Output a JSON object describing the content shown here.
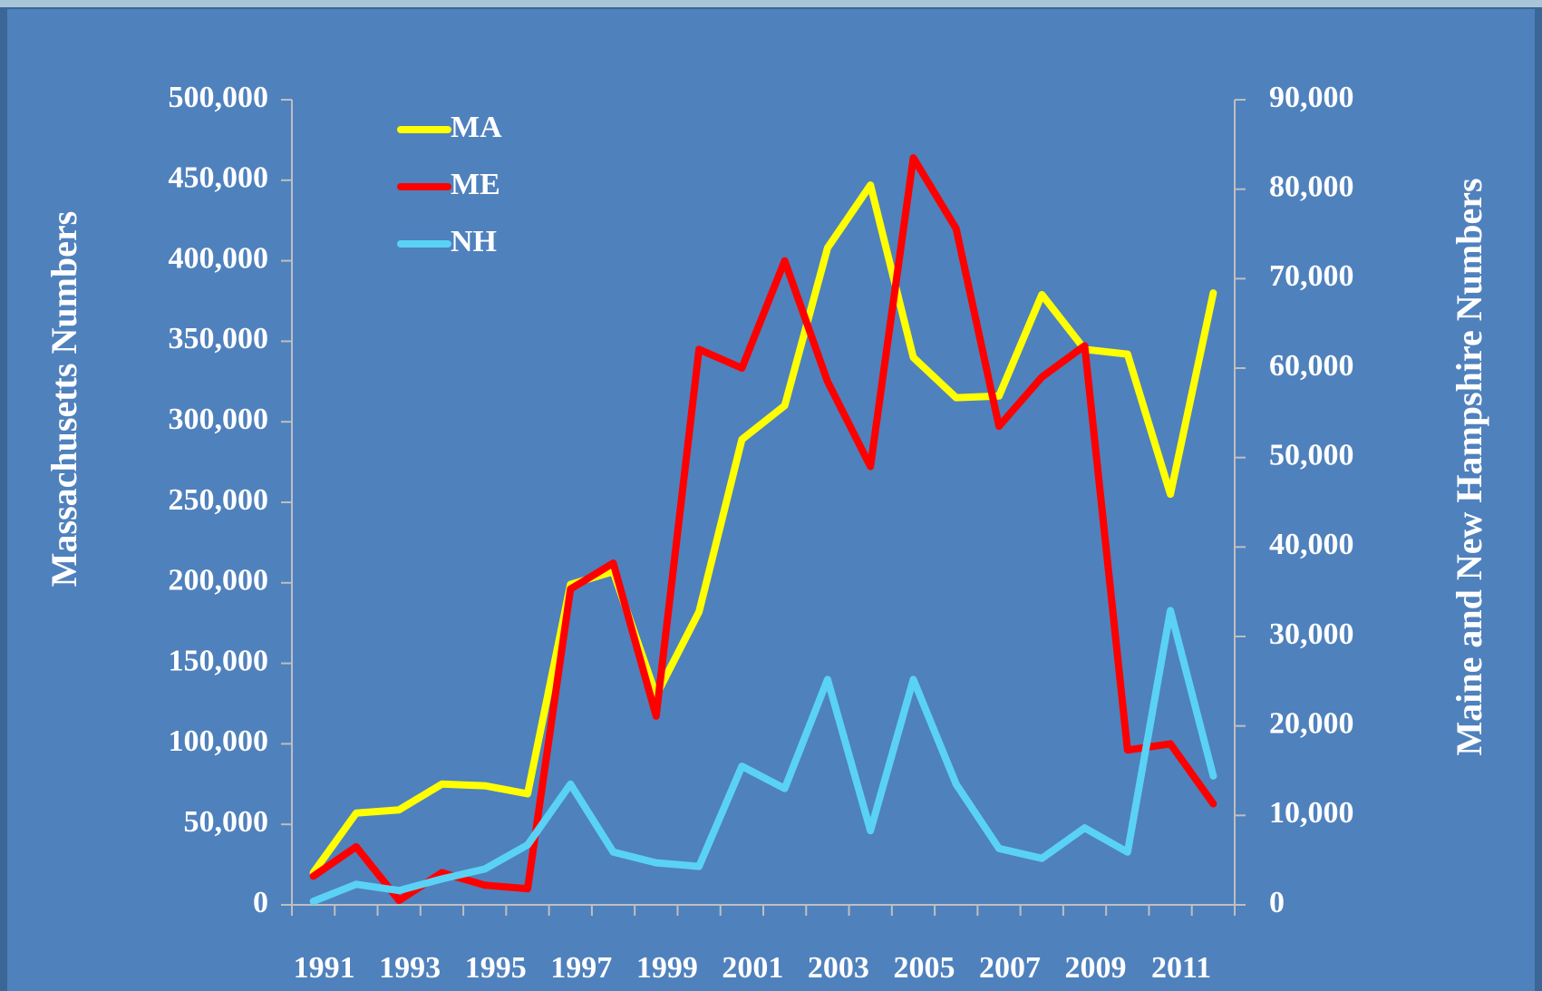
{
  "chart_data": {
    "type": "line",
    "categories": [
      "1991",
      null,
      "1993",
      null,
      "1995",
      null,
      "1997",
      null,
      "1999",
      null,
      "2001",
      null,
      "2003",
      null,
      "2005",
      null,
      "2007",
      null,
      "2009",
      null,
      "2011",
      null
    ],
    "series": [
      {
        "name": "MA",
        "color": "#ffff00",
        "axis": "y",
        "values": [
          20000,
          57000,
          59000,
          75000,
          74000,
          69000,
          199000,
          207000,
          130000,
          182000,
          289000,
          310000,
          408000,
          447000,
          340000,
          315000,
          316000,
          379000,
          345000,
          342000,
          255000,
          380000
        ]
      },
      {
        "name": "ME",
        "color": "#ff0000",
        "axis": "y2",
        "values": [
          3200,
          6500,
          500,
          3600,
          2200,
          1800,
          35300,
          38200,
          21100,
          62100,
          60000,
          72000,
          58500,
          49000,
          83500,
          75600,
          53500,
          59000,
          62500,
          17300,
          18000,
          11300
        ]
      },
      {
        "name": "NH",
        "color": "#5ad2f5",
        "axis": "y2",
        "values": [
          400,
          2300,
          1600,
          2900,
          4000,
          6700,
          13500,
          5900,
          4700,
          4300,
          15500,
          13000,
          25200,
          8300,
          25200,
          13500,
          6300,
          5200,
          8600,
          5900,
          32900,
          14400
        ]
      }
    ],
    "y_label": "Massachusetts Numbers",
    "y2_label": "Maine and New Hampshire Numbers",
    "ylim": [
      0,
      500000
    ],
    "yticks": [
      0,
      {
        "value": 50000,
        "label": "50,000"
      },
      {
        "value": 100000,
        "label": "100,000"
      },
      {
        "value": 150000,
        "label": "150,000"
      },
      {
        "value": 200000,
        "label": "200,000"
      },
      {
        "value": 250000,
        "label": "250,000"
      },
      {
        "value": 300000,
        "label": "300,000"
      },
      {
        "value": 350000,
        "label": "350,000"
      },
      {
        "value": 400000,
        "label": "400,000"
      },
      {
        "value": 450000,
        "label": "450,000"
      },
      {
        "value": 500000,
        "label": "500,000"
      }
    ],
    "y2lim": [
      0,
      90000
    ],
    "y2ticks": [
      0,
      {
        "value": 10000,
        "label": "10,000"
      },
      {
        "value": 20000,
        "label": "20,000"
      },
      {
        "value": 30000,
        "label": "30,000"
      },
      {
        "value": 40000,
        "label": "40,000"
      },
      {
        "value": 50000,
        "label": "50,000"
      },
      {
        "value": 60000,
        "label": "60,000"
      },
      {
        "value": 70000,
        "label": "70,000"
      },
      {
        "value": 80000,
        "label": "80,000"
      },
      {
        "value": 90000,
        "label": "90,000"
      }
    ],
    "legend": "top-left"
  }
}
